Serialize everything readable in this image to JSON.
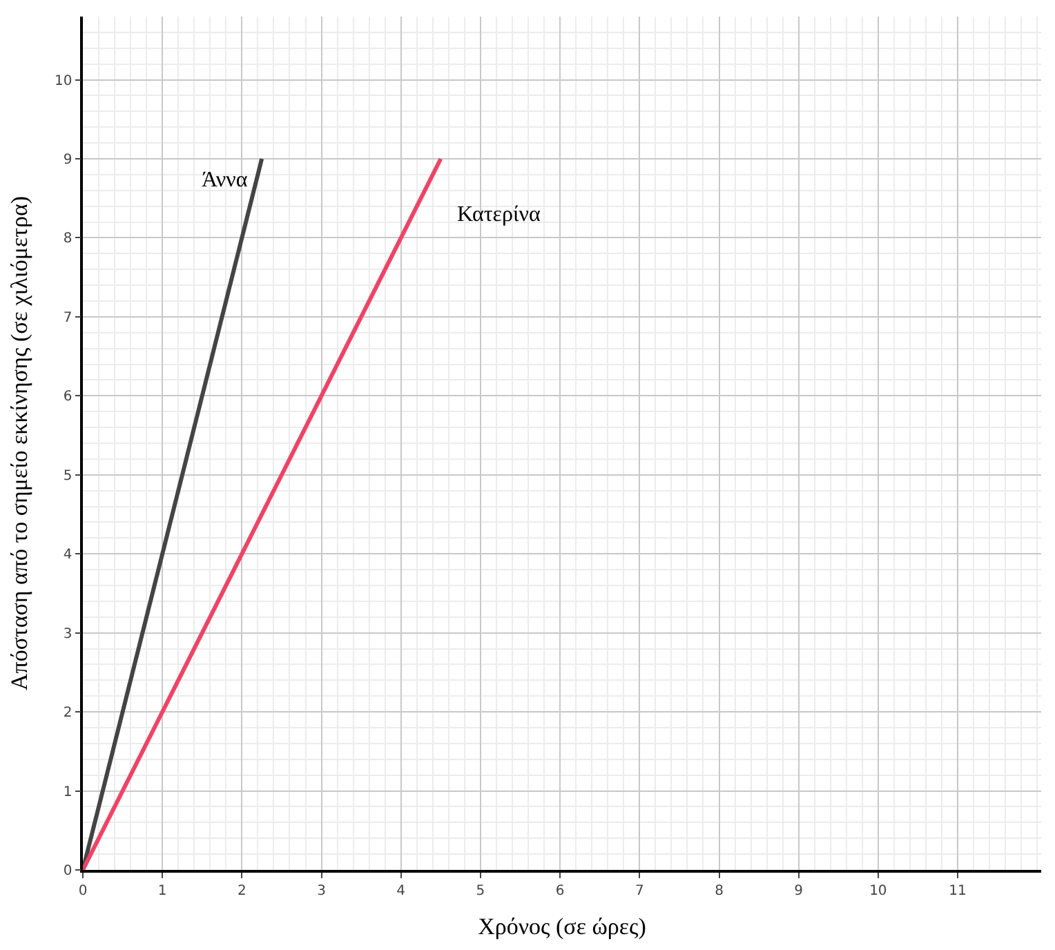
{
  "chart_data": {
    "type": "line",
    "xlabel": "Χρόνος (σε ώρες)",
    "ylabel": "Απόσταση από το σημείο εκκίνησης (σε χιλιόμετρα)",
    "series": [
      {
        "name": "Άννα",
        "color": "#444444",
        "x": [
          0,
          2.25
        ],
        "values": [
          0,
          9
        ]
      },
      {
        "name": "Κατερίνα",
        "color": "#ee4466",
        "x": [
          0,
          4.5
        ],
        "values": [
          0,
          9
        ]
      }
    ],
    "xlim": [
      0,
      12.05
    ],
    "ylim": [
      0,
      10.8
    ],
    "xticks": [
      0,
      1,
      2,
      3,
      4,
      5,
      6,
      7,
      8,
      9,
      10,
      11
    ],
    "yticks": [
      0,
      1,
      2,
      3,
      4,
      5,
      6,
      7,
      8,
      9,
      10
    ],
    "grid": true,
    "legend": false,
    "marker": "none",
    "line_style": "solid"
  }
}
